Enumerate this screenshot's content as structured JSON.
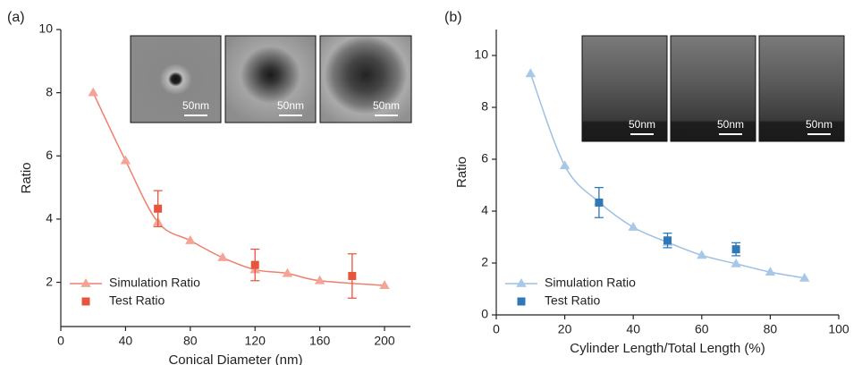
{
  "chart_data": [
    {
      "type": "line",
      "panel_label": "(a)",
      "xlabel": "Conical Diameter (nm)",
      "ylabel": "Ratio",
      "xlim": [
        0,
        216
      ],
      "xticks": [
        0,
        40,
        80,
        120,
        160,
        200
      ],
      "ylim": [
        0.6,
        10
      ],
      "yticks": [
        2,
        4,
        6,
        8,
        10
      ],
      "legend": "lower left",
      "scale_labels": [
        "50nm",
        "50nm",
        "50nm"
      ],
      "series": [
        {
          "name": "Simulation Ratio",
          "color": "#f4a497",
          "line_color": "#f07f6c",
          "marker": "triangle",
          "x": [
            20,
            40,
            60,
            80,
            100,
            120,
            140,
            160,
            200
          ],
          "values": [
            8.0,
            5.85,
            3.9,
            3.32,
            2.78,
            2.4,
            2.28,
            2.05,
            1.9
          ]
        },
        {
          "name": "Test Ratio",
          "color": "#e8553d",
          "marker": "square",
          "x": [
            60,
            120,
            180
          ],
          "values": [
            4.33,
            2.55,
            2.2
          ],
          "errors": [
            0.57,
            0.5,
            0.7
          ]
        }
      ]
    },
    {
      "type": "line",
      "panel_label": "(b)",
      "xlabel": "Cylinder Length/Total Length (%)",
      "ylabel": "Ratio",
      "xlim": [
        0,
        100
      ],
      "xticks": [
        0,
        20,
        40,
        60,
        80,
        100
      ],
      "ylim": [
        0,
        11
      ],
      "yticks": [
        0,
        2,
        4,
        6,
        8,
        10
      ],
      "legend": "lower left",
      "scale_labels": [
        "50nm",
        "50nm",
        "50nm"
      ],
      "series": [
        {
          "name": "Simulation Ratio",
          "color": "#a8c8e8",
          "line_color": "#9cc0e4",
          "marker": "triangle",
          "x": [
            10,
            20,
            30,
            40,
            50,
            60,
            70,
            80,
            90
          ],
          "values": [
            9.3,
            5.75,
            4.35,
            3.38,
            2.8,
            2.3,
            1.97,
            1.65,
            1.42
          ]
        },
        {
          "name": "Test Ratio",
          "color": "#2f78b8",
          "marker": "square",
          "x": [
            30,
            50,
            70
          ],
          "values": [
            4.33,
            2.87,
            2.53
          ],
          "errors": [
            0.58,
            0.28,
            0.25
          ]
        }
      ]
    }
  ]
}
